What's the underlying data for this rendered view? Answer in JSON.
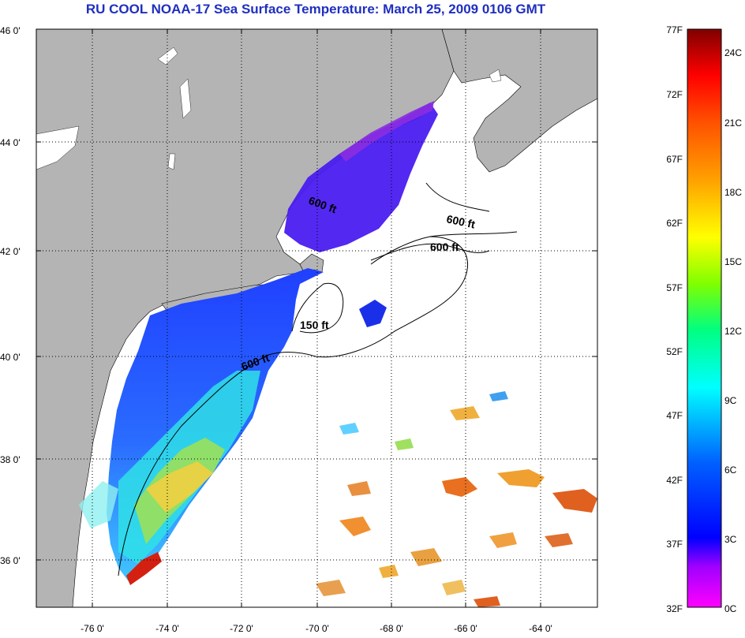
{
  "title": "RU COOL  NOAA-17  Sea Surface Temperature:  March 25, 2009 0106 GMT",
  "map": {
    "lat_ticks": [
      "46 0'",
      "44 0'",
      "42 0'",
      "40 0'",
      "38 0'",
      "36 0'"
    ],
    "lon_ticks": [
      "-76 0'",
      "-74 0'",
      "-72 0'",
      "-70 0'",
      "-68 0'",
      "-66 0'",
      "-64 0'"
    ],
    "lat_range": [
      35,
      46
    ],
    "lon_range": [
      -77,
      -63
    ],
    "grid": true,
    "land_color": "#b4b4b4",
    "no_data_color": "#ffffff",
    "depth_contours": [
      "600 ft",
      "600 ft",
      "600 ft",
      "150 ft",
      "600 ft"
    ]
  },
  "colorbar": {
    "fahrenheit": [
      "77F",
      "72F",
      "67F",
      "62F",
      "57F",
      "52F",
      "47F",
      "42F",
      "37F",
      "32F"
    ],
    "celsius": [
      "24C",
      "21C",
      "18C",
      "15C",
      "12C",
      "9C",
      "6C",
      "3C",
      "0C"
    ],
    "range_f": [
      32,
      77
    ],
    "stops": [
      "#ff00ff",
      "#8000ff",
      "#0000ff",
      "#0080ff",
      "#00ffff",
      "#00ff80",
      "#80ff00",
      "#ffff00",
      "#ffa000",
      "#ff5000",
      "#ff0000",
      "#800000"
    ]
  }
}
